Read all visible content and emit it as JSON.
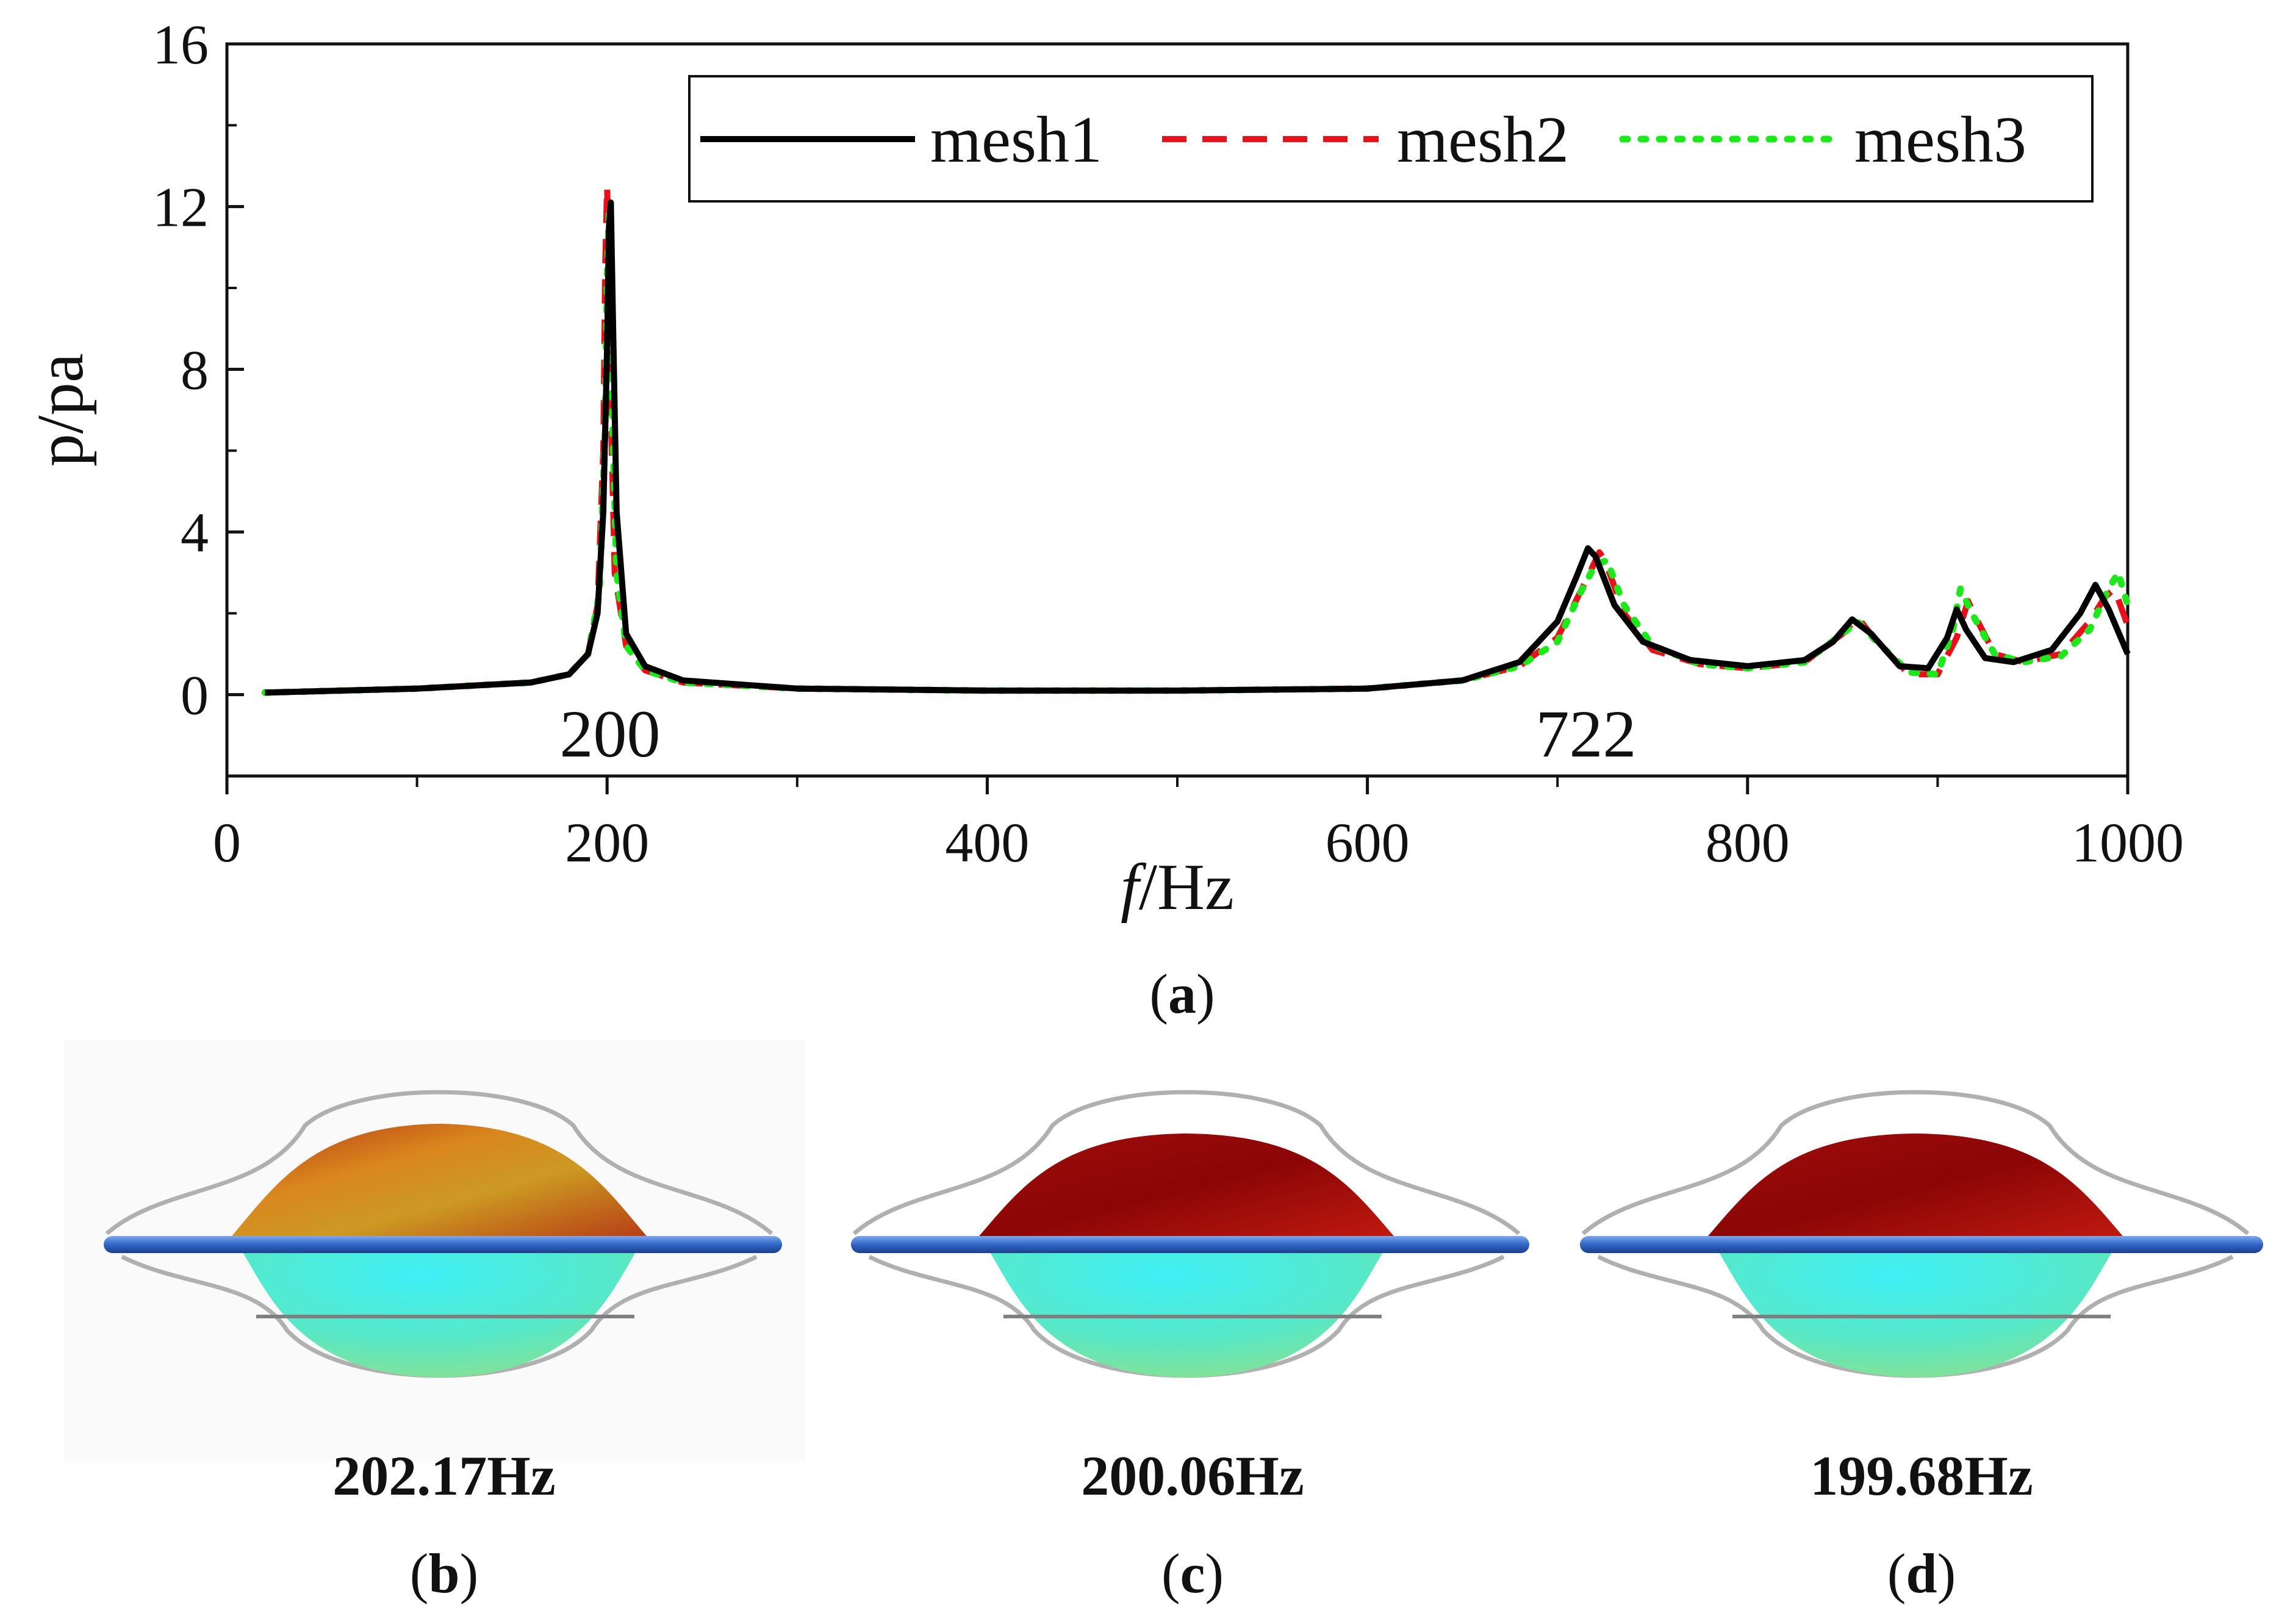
{
  "chart_data": {
    "type": "line",
    "xlabel_italic": "f",
    "xlabel_unit": "/Hz",
    "ylabel": "p/pa",
    "xlim": [
      0,
      1000
    ],
    "ylim": [
      -2,
      16
    ],
    "x_ticks": [
      "0",
      "200",
      "400",
      "600",
      "800",
      "1000"
    ],
    "y_ticks": [
      "0",
      "4",
      "8",
      "12",
      "16"
    ],
    "legend": [
      "mesh1",
      "mesh2",
      "mesh3"
    ],
    "annotations": [
      "200",
      "722"
    ],
    "series": [
      {
        "name": "mesh1",
        "color": "#000000",
        "style": "solid",
        "x": [
          20,
          100,
          160,
          180,
          190,
          195,
          198,
          200,
          201,
          202,
          203,
          205,
          210,
          220,
          240,
          300,
          400,
          500,
          600,
          650,
          680,
          700,
          710,
          716,
          720,
          730,
          745,
          770,
          800,
          830,
          845,
          855,
          865,
          880,
          895,
          905,
          910,
          915,
          925,
          940,
          960,
          975,
          983,
          990,
          1000
        ],
        "y": [
          0.05,
          0.15,
          0.3,
          0.5,
          1.0,
          2.0,
          4.5,
          8.5,
          11.5,
          12.1,
          9.5,
          4.5,
          1.5,
          0.7,
          0.35,
          0.15,
          0.1,
          0.1,
          0.15,
          0.35,
          0.8,
          1.8,
          2.9,
          3.6,
          3.4,
          2.2,
          1.3,
          0.85,
          0.7,
          0.85,
          1.3,
          1.85,
          1.5,
          0.7,
          0.65,
          1.4,
          2.1,
          1.6,
          0.9,
          0.8,
          1.1,
          2.0,
          2.7,
          2.1,
          1.0
        ]
      },
      {
        "name": "mesh2",
        "color": "#e8101a",
        "style": "dashed",
        "x": [
          20,
          100,
          160,
          180,
          190,
          195,
          198,
          199,
          200,
          201,
          202,
          204,
          210,
          220,
          240,
          300,
          400,
          500,
          600,
          650,
          680,
          700,
          715,
          722,
          725,
          735,
          750,
          775,
          800,
          830,
          850,
          858,
          868,
          885,
          900,
          910,
          916,
          920,
          930,
          945,
          965,
          980,
          988,
          993,
          1000
        ],
        "y": [
          0.05,
          0.15,
          0.3,
          0.5,
          1.0,
          2.2,
          6.0,
          10.5,
          12.5,
          10.8,
          7.0,
          3.0,
          1.2,
          0.6,
          0.3,
          0.15,
          0.1,
          0.1,
          0.15,
          0.35,
          0.7,
          1.4,
          2.8,
          3.5,
          3.3,
          2.0,
          1.1,
          0.75,
          0.65,
          0.8,
          1.5,
          1.9,
          1.3,
          0.5,
          0.5,
          1.4,
          2.3,
          1.9,
          1.0,
          0.8,
          1.0,
          1.8,
          2.4,
          2.6,
          1.7
        ]
      },
      {
        "name": "mesh3",
        "color": "#1ce81c",
        "style": "dotted",
        "x": [
          20,
          100,
          160,
          180,
          190,
          196,
          199,
          200,
          201,
          202,
          203,
          205,
          210,
          220,
          240,
          300,
          400,
          500,
          600,
          650,
          680,
          700,
          712,
          720,
          726,
          735,
          750,
          775,
          800,
          830,
          850,
          858,
          868,
          885,
          900,
          908,
          912,
          918,
          930,
          945,
          965,
          980,
          990,
          995,
          1000
        ],
        "y": [
          0.05,
          0.15,
          0.3,
          0.5,
          1.0,
          2.5,
          6.5,
          10.2,
          11.8,
          10.0,
          6.5,
          3.0,
          1.2,
          0.6,
          0.3,
          0.15,
          0.1,
          0.1,
          0.15,
          0.35,
          0.7,
          1.3,
          2.5,
          3.2,
          3.3,
          2.2,
          1.2,
          0.75,
          0.65,
          0.8,
          1.5,
          1.8,
          1.3,
          0.55,
          0.5,
          1.6,
          2.6,
          2.0,
          1.0,
          0.8,
          0.95,
          1.6,
          2.6,
          3.0,
          2.2
        ]
      }
    ]
  },
  "panels": {
    "a_label": "a",
    "b_label": "b",
    "c_label": "c",
    "d_label": "d",
    "b_freq": "202.17Hz",
    "c_freq": "200.06Hz",
    "d_freq": "199.68Hz"
  },
  "colors": {
    "mesh1": "#000000",
    "mesh2": "#e8101a",
    "mesh3": "#1ce81c",
    "ring": "#2f66c8"
  }
}
